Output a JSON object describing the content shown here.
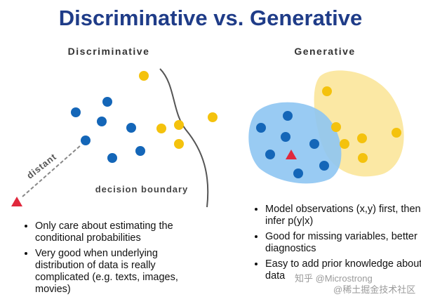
{
  "header": {
    "title": "Discriminative vs. Generative"
  },
  "left": {
    "heading": "Discriminative",
    "arrow_label": "distant",
    "boundary_label": "decision boundary",
    "bullets": [
      "Only care about estimating the conditional probabilities",
      "Very good when underlying distribution of data is really complicated (e.g. texts, images, movies)"
    ]
  },
  "right": {
    "heading": "Generative",
    "bullets": [
      "Model observations (x,y) first, then infer p(y|x)",
      "Good for missing variables, better diagnostics",
      "Easy to add prior knowledge about data"
    ]
  },
  "watermarks": [
    "知乎 @Microstrong",
    "@稀土掘金技术社区"
  ]
}
